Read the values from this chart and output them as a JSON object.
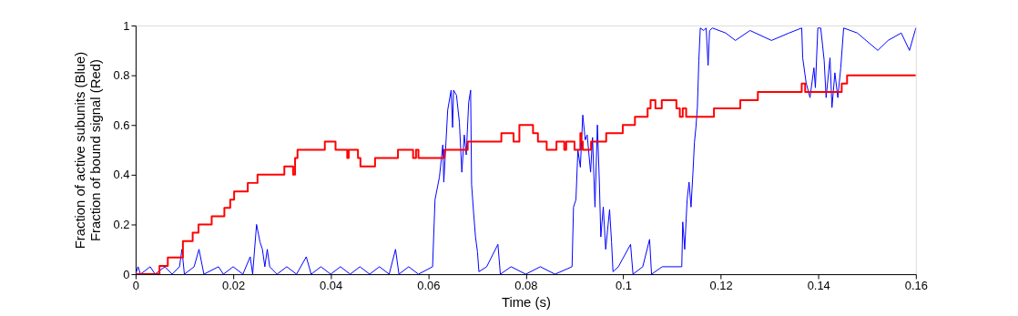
{
  "chart_data": {
    "type": "line",
    "xlabel": "Time (s)",
    "ylabel": "Fraction of active subunits (Blue)\nFraction of bound signal (Red)",
    "xlim": [
      0,
      0.16
    ],
    "xticks": [
      0,
      0.02,
      0.04,
      0.06,
      0.08,
      0.1,
      0.12,
      0.14,
      0.16
    ],
    "ylim": [
      0,
      1
    ],
    "yticks": [
      0,
      0.2,
      0.4,
      0.6,
      0.8,
      1
    ],
    "grid": false,
    "marker": "none",
    "line_style": "solid",
    "series": [
      {
        "color": "#0000ff",
        "x": [
          0,
          0.0005,
          0.001,
          0.003,
          0.004,
          0.006,
          0.0075,
          0.009,
          0.0095,
          0.01,
          0.012,
          0.013,
          0.014,
          0.017,
          0.018,
          0.02,
          0.022,
          0.0235,
          0.024,
          0.0248,
          0.0255,
          0.026,
          0.0265,
          0.027,
          0.0275,
          0.029,
          0.031,
          0.033,
          0.035,
          0.036,
          0.038,
          0.04,
          0.042,
          0.044,
          0.046,
          0.048,
          0.05,
          0.052,
          0.0533,
          0.054,
          0.056,
          0.058,
          0.0609,
          0.0614,
          0.0623,
          0.063,
          0.0632,
          0.064,
          0.0647,
          0.065,
          0.0652,
          0.0658,
          0.0664,
          0.0669,
          0.0674,
          0.0678,
          0.0683,
          0.0687,
          0.0689,
          0.0693,
          0.0697,
          0.0701,
          0.0704,
          0.072,
          0.0743,
          0.0748,
          0.077,
          0.08,
          0.083,
          0.086,
          0.0895,
          0.0898,
          0.0903,
          0.0907,
          0.0912,
          0.0917,
          0.0922,
          0.0926,
          0.0933,
          0.0937,
          0.0942,
          0.0947,
          0.0951,
          0.0954,
          0.0959,
          0.0964,
          0.0972,
          0.0976,
          0.0979,
          0.099,
          0.1015,
          0.102,
          0.104,
          0.1054,
          0.1058,
          0.108,
          0.112,
          0.1122,
          0.1126,
          0.1131,
          0.1135,
          0.1139,
          0.1143,
          0.1146,
          0.1149,
          0.1152,
          0.1155,
          0.1158,
          0.1165,
          0.117,
          0.1174,
          0.1177,
          0.1183,
          0.121,
          0.123,
          0.126,
          0.1304,
          0.134,
          0.1366,
          0.1368,
          0.1375,
          0.1383,
          0.1391,
          0.1394,
          0.1399,
          0.1405,
          0.1412,
          0.1416,
          0.1424,
          0.1428,
          0.1434,
          0.144,
          0.1446,
          0.1452,
          0.148,
          0.1522,
          0.1543,
          0.157,
          0.1587,
          0.16
        ],
        "values": [
          0,
          0.03,
          0,
          0.03,
          0,
          0.03,
          0,
          0.03,
          0.1,
          0,
          0.03,
          0.1,
          0,
          0.03,
          0,
          0.03,
          0,
          0.07,
          0,
          0.2,
          0.13,
          0.1,
          0.03,
          0.1,
          0.03,
          0,
          0.03,
          0,
          0.07,
          0,
          0.03,
          0,
          0.03,
          0,
          0.03,
          0,
          0.03,
          0,
          0.1,
          0,
          0.03,
          0,
          0.03,
          0.3,
          0.39,
          0.52,
          0.37,
          0.66,
          0.74,
          0.59,
          0.74,
          0.72,
          0.61,
          0.41,
          0.56,
          0.48,
          0.69,
          0.74,
          0.36,
          0.25,
          0.15,
          0.09,
          0.01,
          0.03,
          0.12,
          0,
          0.03,
          0,
          0.03,
          0,
          0.03,
          0.27,
          0.3,
          0.5,
          0.43,
          0.64,
          0.54,
          0.56,
          0.41,
          0.55,
          0.27,
          0.6,
          0.37,
          0.15,
          0.27,
          0.1,
          0.26,
          0.13,
          0.01,
          0.03,
          0.12,
          0,
          0.03,
          0.14,
          0,
          0.03,
          0.03,
          0.21,
          0.1,
          0.3,
          0.37,
          0.27,
          0.41,
          0.53,
          0.59,
          0.67,
          0.86,
          0.99,
          0.98,
          0.99,
          0.84,
          0.98,
          0.99,
          0.97,
          0.94,
          0.98,
          0.94,
          0.97,
          0.99,
          0.87,
          0.77,
          0.71,
          0.83,
          0.75,
          0.99,
          0.99,
          0.86,
          0.71,
          0.87,
          0.67,
          0.81,
          0.71,
          0.83,
          0.99,
          0.97,
          0.9,
          0.94,
          0.97,
          0.9,
          0.99
        ]
      },
      {
        "type": "step",
        "color": "#ff0000",
        "x": [
          0,
          0.0049,
          0.0066,
          0.0097,
          0.0117,
          0.0129,
          0.0156,
          0.0182,
          0.0194,
          0.0202,
          0.023,
          0.025,
          0.0305,
          0.0323,
          0.0327,
          0.0332,
          0.0388,
          0.041,
          0.0434,
          0.0437,
          0.0456,
          0.0461,
          0.0466,
          0.0491,
          0.0538,
          0.0569,
          0.0575,
          0.058,
          0.0588,
          0.0633,
          0.0681,
          0.075,
          0.0775,
          0.0787,
          0.0815,
          0.0825,
          0.0843,
          0.0863,
          0.0879,
          0.0883,
          0.09,
          0.0912,
          0.0914,
          0.0917,
          0.0934,
          0.0965,
          0.0999,
          0.1024,
          0.105,
          0.1056,
          0.1066,
          0.1079,
          0.1109,
          0.1116,
          0.1122,
          0.1129,
          0.1186,
          0.124,
          0.1276,
          0.1366,
          0.1373,
          0.1448,
          0.1459,
          0.16
        ],
        "values": [
          0,
          0.033,
          0.067,
          0.133,
          0.167,
          0.2,
          0.233,
          0.267,
          0.3,
          0.333,
          0.367,
          0.4,
          0.433,
          0.4,
          0.467,
          0.5,
          0.533,
          0.5,
          0.467,
          0.5,
          0.467,
          0.433,
          0.433,
          0.467,
          0.5,
          0.467,
          0.5,
          0.467,
          0.467,
          0.5,
          0.533,
          0.567,
          0.533,
          0.6,
          0.567,
          0.533,
          0.5,
          0.533,
          0.5,
          0.533,
          0.5,
          0.567,
          0.533,
          0.5,
          0.533,
          0.567,
          0.6,
          0.633,
          0.667,
          0.7,
          0.667,
          0.7,
          0.667,
          0.633,
          0.667,
          0.633,
          0.667,
          0.7,
          0.733,
          0.767,
          0.733,
          0.767,
          0.8,
          0.8
        ]
      }
    ]
  }
}
